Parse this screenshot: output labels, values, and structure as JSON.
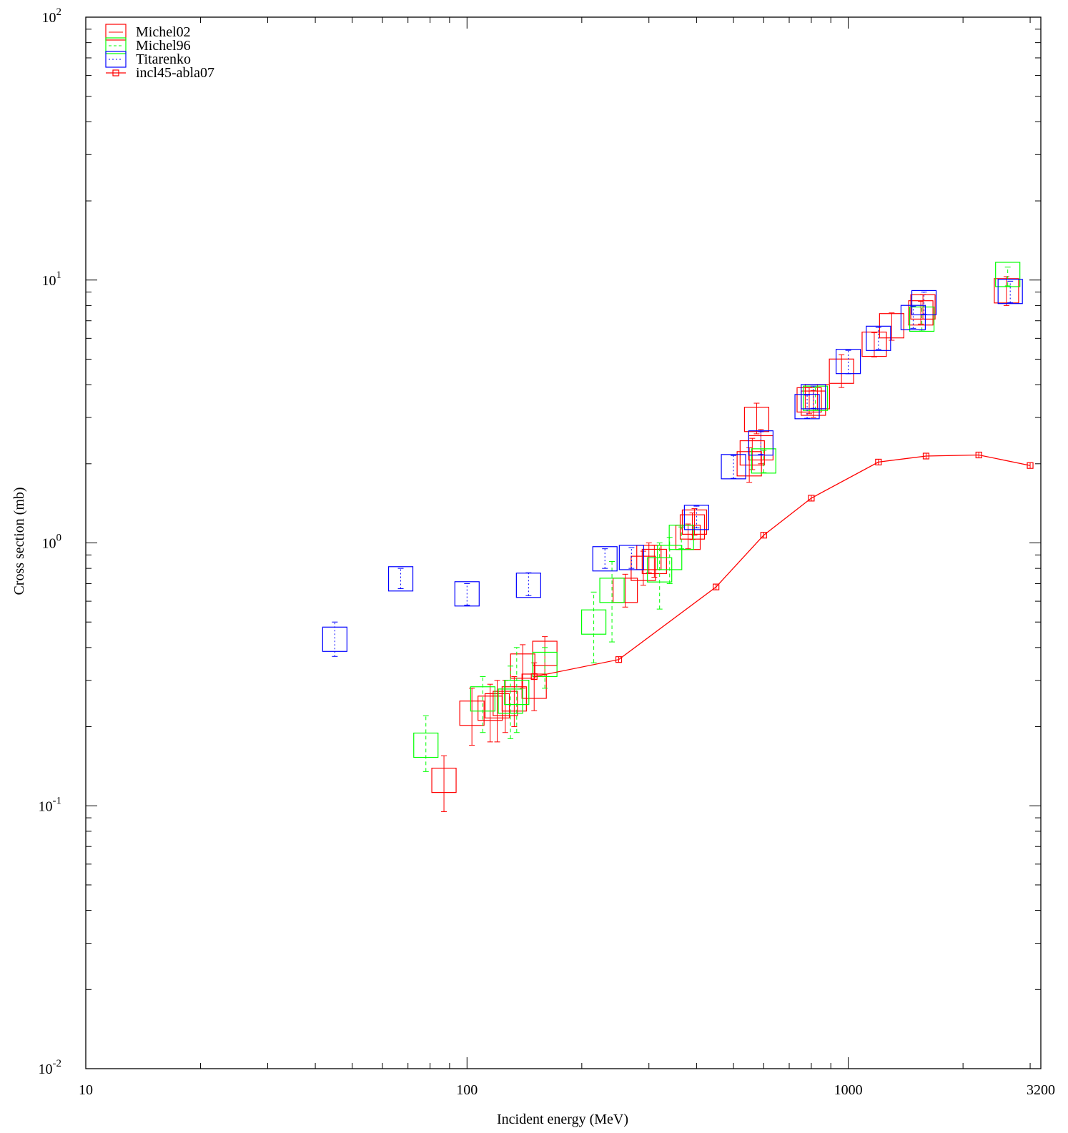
{
  "chart_data": {
    "type": "scatter",
    "title": "",
    "xlabel": "Incident energy (MeV)",
    "ylabel": "Cross section (mb)",
    "x_scale": "log",
    "y_scale": "log",
    "xlim": [
      10,
      3200
    ],
    "ylim": [
      0.01,
      100
    ],
    "x_ticks": [
      {
        "value": 10,
        "label": "10"
      },
      {
        "value": 100,
        "label": "100"
      },
      {
        "value": 1000,
        "label": "1000"
      },
      {
        "value": 3200,
        "label": "3200"
      }
    ],
    "y_ticks": [
      {
        "value": 0.01,
        "base": "10",
        "exp": "-2"
      },
      {
        "value": 0.1,
        "base": "10",
        "exp": "-1"
      },
      {
        "value": 1,
        "base": "10",
        "exp": "0"
      },
      {
        "value": 10,
        "base": "10",
        "exp": "1"
      },
      {
        "value": 100,
        "base": "10",
        "exp": "2"
      }
    ],
    "grid": false,
    "legend_position": "top-left",
    "series": [
      {
        "name": "Michel02",
        "color": "#ff0000",
        "style": "box",
        "points": [
          {
            "x": 87,
            "y": 0.125,
            "ylo": 0.095,
            "yhi": 0.155
          },
          {
            "x": 103,
            "y": 0.225,
            "ylo": 0.17,
            "yhi": 0.28
          },
          {
            "x": 115,
            "y": 0.235,
            "ylo": 0.175,
            "yhi": 0.29
          },
          {
            "x": 120,
            "y": 0.24,
            "ylo": 0.175,
            "yhi": 0.3
          },
          {
            "x": 126,
            "y": 0.245,
            "ylo": 0.19,
            "yhi": 0.3
          },
          {
            "x": 133,
            "y": 0.255,
            "ylo": 0.2,
            "yhi": 0.31
          },
          {
            "x": 140,
            "y": 0.34,
            "ylo": 0.28,
            "yhi": 0.41
          },
          {
            "x": 150,
            "y": 0.285,
            "ylo": 0.23,
            "yhi": 0.35
          },
          {
            "x": 160,
            "y": 0.38,
            "ylo": 0.31,
            "yhi": 0.44
          },
          {
            "x": 260,
            "y": 0.66,
            "ylo": 0.57,
            "yhi": 0.76
          },
          {
            "x": 290,
            "y": 0.8,
            "ylo": 0.69,
            "yhi": 0.93
          },
          {
            "x": 300,
            "y": 0.88,
            "ylo": 0.77,
            "yhi": 1.0
          },
          {
            "x": 310,
            "y": 0.85,
            "ylo": 0.74,
            "yhi": 0.98
          },
          {
            "x": 380,
            "y": 1.05,
            "ylo": 0.95,
            "yhi": 1.18
          },
          {
            "x": 390,
            "y": 1.15,
            "ylo": 1.03,
            "yhi": 1.3
          },
          {
            "x": 395,
            "y": 1.2,
            "ylo": 1.07,
            "yhi": 1.35
          },
          {
            "x": 550,
            "y": 2.0,
            "ylo": 1.7,
            "yhi": 2.3
          },
          {
            "x": 560,
            "y": 2.2,
            "ylo": 1.9,
            "yhi": 2.5
          },
          {
            "x": 575,
            "y": 2.95,
            "ylo": 2.6,
            "yhi": 3.4
          },
          {
            "x": 590,
            "y": 2.3,
            "ylo": 2.0,
            "yhi": 2.7
          },
          {
            "x": 790,
            "y": 3.5,
            "ylo": 3.1,
            "yhi": 3.9
          },
          {
            "x": 810,
            "y": 3.4,
            "ylo": 3.0,
            "yhi": 3.8
          },
          {
            "x": 830,
            "y": 3.6,
            "ylo": 3.2,
            "yhi": 4.0
          },
          {
            "x": 960,
            "y": 4.5,
            "ylo": 3.9,
            "yhi": 5.2
          },
          {
            "x": 1170,
            "y": 5.7,
            "ylo": 5.1,
            "yhi": 6.3
          },
          {
            "x": 1300,
            "y": 6.7,
            "ylo": 5.9,
            "yhi": 7.5
          },
          {
            "x": 1550,
            "y": 7.5,
            "ylo": 6.8,
            "yhi": 8.3
          },
          {
            "x": 1570,
            "y": 7.9,
            "ylo": 7.1,
            "yhi": 8.8
          },
          {
            "x": 2600,
            "y": 9.1,
            "ylo": 8.0,
            "yhi": 10.3
          }
        ]
      },
      {
        "name": "Michel96",
        "color": "#00ff00",
        "style": "box",
        "points": [
          {
            "x": 78,
            "y": 0.17,
            "ylo": 0.135,
            "yhi": 0.22
          },
          {
            "x": 110,
            "y": 0.255,
            "ylo": 0.19,
            "yhi": 0.31
          },
          {
            "x": 130,
            "y": 0.25,
            "ylo": 0.18,
            "yhi": 0.34
          },
          {
            "x": 135,
            "y": 0.27,
            "ylo": 0.19,
            "yhi": 0.4
          },
          {
            "x": 160,
            "y": 0.345,
            "ylo": 0.28,
            "yhi": 0.4
          },
          {
            "x": 215,
            "y": 0.5,
            "ylo": 0.35,
            "yhi": 0.65
          },
          {
            "x": 240,
            "y": 0.66,
            "ylo": 0.42,
            "yhi": 0.85
          },
          {
            "x": 320,
            "y": 0.79,
            "ylo": 0.56,
            "yhi": 1.0
          },
          {
            "x": 340,
            "y": 0.88,
            "ylo": 0.7,
            "yhi": 1.05
          },
          {
            "x": 365,
            "y": 1.05,
            "ylo": 0.95,
            "yhi": 1.15
          },
          {
            "x": 600,
            "y": 2.05,
            "ylo": 1.85,
            "yhi": 2.25
          },
          {
            "x": 820,
            "y": 3.55,
            "ylo": 3.2,
            "yhi": 3.9
          },
          {
            "x": 1560,
            "y": 7.1,
            "ylo": 6.4,
            "yhi": 7.9
          },
          {
            "x": 2620,
            "y": 10.5,
            "ylo": 9.5,
            "yhi": 11.2
          }
        ]
      },
      {
        "name": "Titarenko",
        "color": "#0000ff",
        "style": "box",
        "points": [
          {
            "x": 45,
            "y": 0.43,
            "ylo": 0.37,
            "yhi": 0.5
          },
          {
            "x": 67,
            "y": 0.73,
            "ylo": 0.67,
            "yhi": 0.8
          },
          {
            "x": 100,
            "y": 0.64,
            "ylo": 0.58,
            "yhi": 0.7
          },
          {
            "x": 145,
            "y": 0.69,
            "ylo": 0.63,
            "yhi": 0.77
          },
          {
            "x": 230,
            "y": 0.87,
            "ylo": 0.8,
            "yhi": 0.95
          },
          {
            "x": 270,
            "y": 0.88,
            "ylo": 0.8,
            "yhi": 0.96
          },
          {
            "x": 400,
            "y": 1.25,
            "ylo": 1.14,
            "yhi": 1.38
          },
          {
            "x": 500,
            "y": 1.95,
            "ylo": 1.76,
            "yhi": 2.15
          },
          {
            "x": 590,
            "y": 2.4,
            "ylo": 2.17,
            "yhi": 2.65
          },
          {
            "x": 780,
            "y": 3.3,
            "ylo": 2.98,
            "yhi": 3.65
          },
          {
            "x": 810,
            "y": 3.6,
            "ylo": 3.25,
            "yhi": 3.95
          },
          {
            "x": 1000,
            "y": 4.9,
            "ylo": 4.4,
            "yhi": 5.4
          },
          {
            "x": 1200,
            "y": 6.0,
            "ylo": 5.45,
            "yhi": 6.6
          },
          {
            "x": 1480,
            "y": 7.2,
            "ylo": 6.55,
            "yhi": 7.95
          },
          {
            "x": 1580,
            "y": 8.2,
            "ylo": 7.4,
            "yhi": 9.0
          },
          {
            "x": 2660,
            "y": 9.05,
            "ylo": 8.2,
            "yhi": 9.9
          }
        ]
      },
      {
        "name": "incl45-abla07",
        "color": "#ff0000",
        "style": "line",
        "points": [
          {
            "x": 150,
            "y": 0.31
          },
          {
            "x": 250,
            "y": 0.36
          },
          {
            "x": 450,
            "y": 0.68
          },
          {
            "x": 600,
            "y": 1.07
          },
          {
            "x": 800,
            "y": 1.48
          },
          {
            "x": 1200,
            "y": 2.03
          },
          {
            "x": 1600,
            "y": 2.14
          },
          {
            "x": 2200,
            "y": 2.16
          },
          {
            "x": 3000,
            "y": 1.97
          }
        ]
      }
    ]
  }
}
